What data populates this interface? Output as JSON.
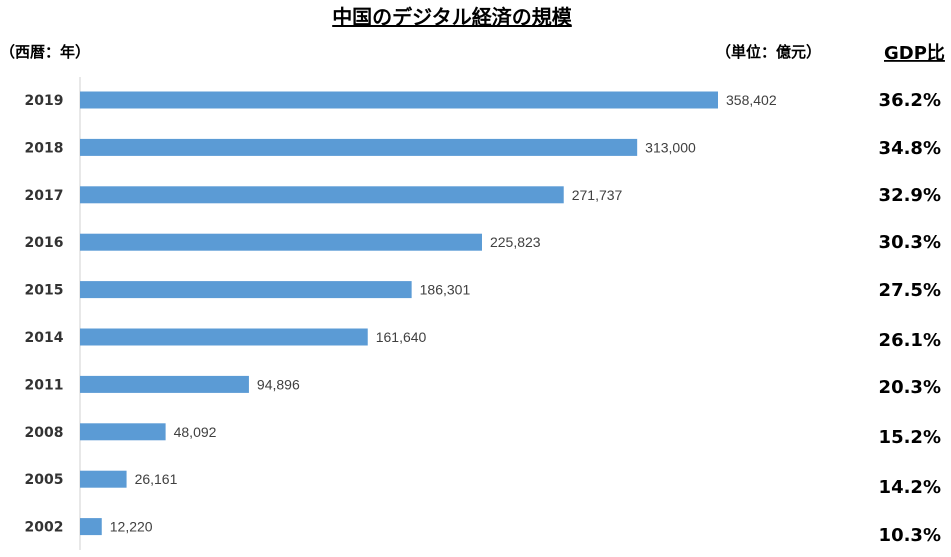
{
  "chart_data": {
    "type": "bar",
    "orientation": "horizontal",
    "title": "中国のデジタル経済の規模",
    "y_axis_label": "（西暦：年）",
    "value_unit_label": "（単位：億元）",
    "categories": [
      "2019",
      "2018",
      "2017",
      "2016",
      "2015",
      "2014",
      "2011",
      "2008",
      "2005",
      "2002"
    ],
    "values": [
      358402,
      313000,
      271737,
      225823,
      186301,
      161640,
      94896,
      48092,
      26161,
      12220
    ],
    "value_labels": [
      "358,402",
      "313,000",
      "271,737",
      "225,823",
      "186,301",
      "161,640",
      "94,896",
      "48,092",
      "26,161",
      "12,220"
    ],
    "xlim": [
      0,
      400000
    ],
    "gdp_ratio_header": "GDP比",
    "gdp_ratio": [
      "36.2%",
      "34.8%",
      "32.9%",
      "30.3%",
      "27.5%",
      "26.1%",
      "20.3%",
      "15.2%",
      "14.2%",
      "10.3%"
    ],
    "bar_color": "#5b9bd5",
    "grid": false,
    "legend": "none"
  }
}
